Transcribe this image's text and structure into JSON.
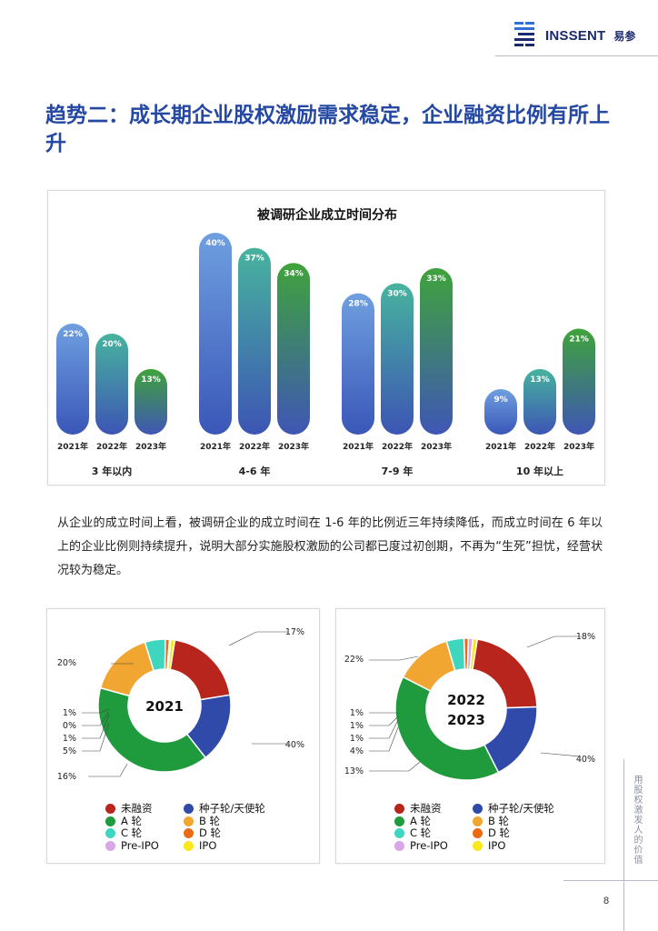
{
  "header": {
    "brand": "INSSENT",
    "brand_cn": "易参"
  },
  "title": "趋势二：成长期企业股权激励需求稳定，企业融资比例有所上升",
  "paragraph": "从企业的成立时间上看，被调研企业的成立时间在 1-6 年的比例近三年持续降低，而成立时间在 6 年以上的企业比例则持续提升，说明大部分实施股权激励的公司都已度过初创期，不再为“生死”担忧，经营状况较为稳定。",
  "side_slogan": "用股权激发人的价值",
  "page_number": "8",
  "colors": {
    "title": "#2548a3",
    "bar_2021": [
      "#6f9fe0",
      "#3a57b8"
    ],
    "bar_2022": [
      "#47b39e",
      "#3d55b4"
    ],
    "bar_2023": [
      "#3fa33b",
      "#3f56b5"
    ]
  },
  "chart_data": [
    {
      "type": "bar",
      "title": "被调研企业成立时间分布",
      "groups": [
        "3 年以内",
        "4-6 年",
        "7-9 年",
        "10 年以上"
      ],
      "series_labels": [
        "2021年",
        "2022年",
        "2023年"
      ],
      "values": [
        [
          22,
          20,
          13
        ],
        [
          40,
          37,
          34
        ],
        [
          28,
          30,
          33
        ],
        [
          9,
          13,
          21
        ]
      ],
      "unit": "%",
      "ylim": [
        0,
        40
      ]
    },
    {
      "type": "pie",
      "center_label": "2021",
      "slices": [
        {
          "name": "未融资",
          "value": 20,
          "label": "20%",
          "color": "#b7251c"
        },
        {
          "name": "种子轮/天使轮",
          "value": 17,
          "label": "17%",
          "color": "#2f4aa8"
        },
        {
          "name": "A 轮",
          "value": 40,
          "label": "40%",
          "color": "#1f9a3c"
        },
        {
          "name": "B 轮",
          "value": 16,
          "label": "16%",
          "color": "#f0a630"
        },
        {
          "name": "C 轮",
          "value": 5,
          "label": "5%",
          "color": "#3fd6c0"
        },
        {
          "name": "D 轮",
          "value": 1,
          "label": "1%",
          "color": "#ea6b14"
        },
        {
          "name": "Pre-IPO",
          "value": 0,
          "label": "0%",
          "color": "#d9a6e6"
        },
        {
          "name": "IPO",
          "value": 1,
          "label": "1%",
          "color": "#f8e81c"
        }
      ]
    },
    {
      "type": "pie",
      "center_label": [
        "2022",
        "2023"
      ],
      "slices": [
        {
          "name": "未融资",
          "value": 22,
          "label": "22%",
          "color": "#b7251c"
        },
        {
          "name": "种子轮/天使轮",
          "value": 18,
          "label": "18%",
          "color": "#2f4aa8"
        },
        {
          "name": "A 轮",
          "value": 40,
          "label": "40%",
          "color": "#1f9a3c"
        },
        {
          "name": "B 轮",
          "value": 13,
          "label": "13%",
          "color": "#f0a630"
        },
        {
          "name": "C 轮",
          "value": 4,
          "label": "4%",
          "color": "#3fd6c0"
        },
        {
          "name": "D 轮",
          "value": 1,
          "label": "1%",
          "color": "#ea6b14"
        },
        {
          "name": "Pre-IPO",
          "value": 1,
          "label": "1%",
          "color": "#d9a6e6"
        },
        {
          "name": "IPO",
          "value": 1,
          "label": "1%",
          "color": "#f8e81c"
        }
      ]
    }
  ],
  "legend": [
    {
      "label": "未融资",
      "color": "#b7251c"
    },
    {
      "label": "种子轮/天使轮",
      "color": "#2f4aa8"
    },
    {
      "label": "A 轮",
      "color": "#1f9a3c"
    },
    {
      "label": "B 轮",
      "color": "#f0a630"
    },
    {
      "label": "C 轮",
      "color": "#3fd6c0"
    },
    {
      "label": "D 轮",
      "color": "#ea6b14"
    },
    {
      "label": "Pre-IPO",
      "color": "#d9a6e6"
    },
    {
      "label": "IPO",
      "color": "#f8e81c"
    }
  ]
}
